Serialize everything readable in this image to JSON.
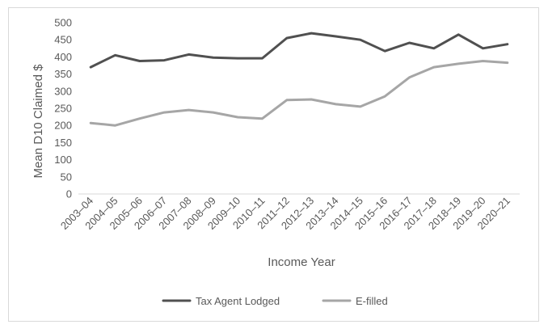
{
  "chart_data": {
    "type": "line",
    "title": "",
    "xlabel": "Income Year",
    "ylabel": "Mean D10 Claimed $",
    "ylim": [
      0,
      500
    ],
    "yticks": [
      0,
      50,
      100,
      150,
      200,
      250,
      300,
      350,
      400,
      450,
      500
    ],
    "grid": false,
    "legend_position": "bottom",
    "categories": [
      "2003–04",
      "2004–05",
      "2005–06",
      "2006–07",
      "2007–08",
      "2008–09",
      "2009–10",
      "2010–11",
      "2011–12",
      "2012–13",
      "2013–14",
      "2014–15",
      "2015–16",
      "2016–17",
      "2017–18",
      "2018–19",
      "2019–20",
      "2020–21"
    ],
    "series": [
      {
        "name": "Tax Agent Lodged",
        "color": "#505050",
        "values": [
          370,
          405,
          388,
          390,
          407,
          398,
          396,
          396,
          455,
          469,
          460,
          450,
          417,
          441,
          425,
          465,
          425,
          437
        ]
      },
      {
        "name": "E-filled",
        "color": "#a6a6a6",
        "values": [
          207,
          200,
          220,
          238,
          245,
          238,
          224,
          220,
          274,
          276,
          262,
          255,
          285,
          340,
          370,
          380,
          388,
          383
        ]
      }
    ]
  }
}
